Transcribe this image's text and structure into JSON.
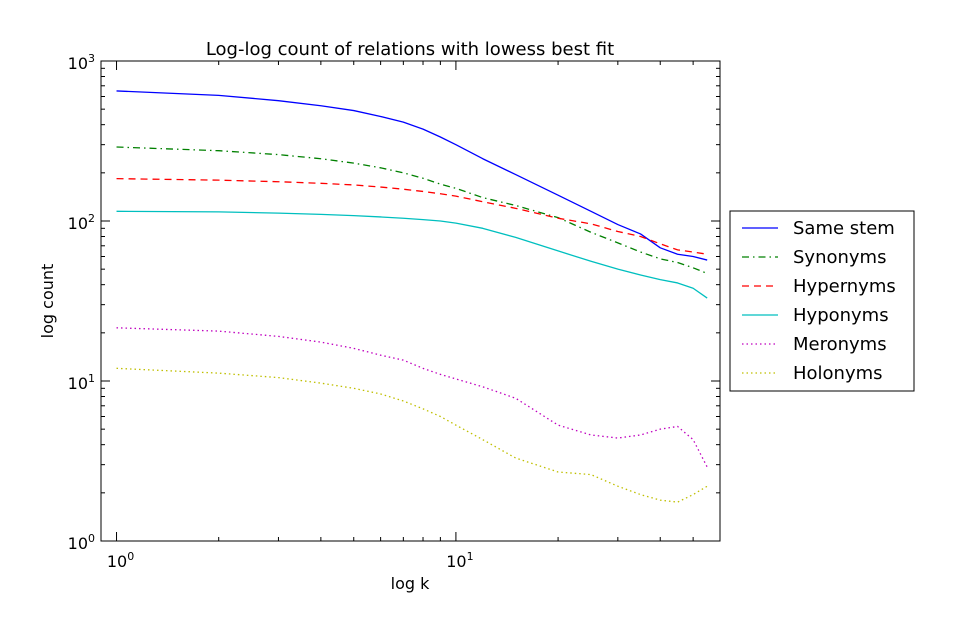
{
  "chart_data": {
    "type": "line",
    "title": "Log-log count of relations with lowess best fit",
    "xlabel": "log k",
    "ylabel": "log count",
    "x_scale": "log",
    "y_scale": "log",
    "xlim": [
      0.9,
      60
    ],
    "ylim": [
      1,
      1000
    ],
    "x_ticks": [
      {
        "value": 1,
        "base": "10",
        "exp": "0"
      },
      {
        "value": 10,
        "base": "10",
        "exp": "1"
      }
    ],
    "y_ticks": [
      {
        "value": 1,
        "base": "10",
        "exp": "0"
      },
      {
        "value": 10,
        "base": "10",
        "exp": "1"
      },
      {
        "value": 100,
        "base": "10",
        "exp": "2"
      },
      {
        "value": 1000,
        "base": "10",
        "exp": "3"
      }
    ],
    "grid": false,
    "legend_position": "right, outside plot",
    "x": [
      1,
      2,
      3,
      4,
      5,
      6,
      7,
      8,
      9,
      10,
      12,
      15,
      20,
      25,
      30,
      35,
      40,
      45,
      50,
      55
    ],
    "series": [
      {
        "name": "Same stem",
        "color": "#0000ff",
        "dash": "solid",
        "values": [
          650,
          610,
          565,
          525,
          490,
          450,
          415,
          375,
          335,
          300,
          245,
          195,
          145,
          115,
          95,
          83,
          68,
          62,
          60,
          57
        ]
      },
      {
        "name": "Synonyms",
        "color": "#008000",
        "dash": "dashdot",
        "values": [
          290,
          275,
          260,
          245,
          230,
          215,
          200,
          185,
          170,
          160,
          140,
          125,
          105,
          85,
          73,
          64,
          58,
          55,
          51,
          47
        ]
      },
      {
        "name": "Hypernyms",
        "color": "#ff0000",
        "dash": "dashed",
        "values": [
          184,
          180,
          176,
          172,
          168,
          163,
          158,
          153,
          148,
          143,
          132,
          120,
          104,
          96,
          86,
          80,
          72,
          66,
          64,
          62
        ]
      },
      {
        "name": "Hyponyms",
        "color": "#00bfbf",
        "dash": "solid",
        "values": [
          115,
          114,
          112,
          110,
          108,
          106,
          104,
          102,
          100,
          97,
          90,
          79,
          65,
          56,
          50,
          46,
          43,
          41,
          38,
          33
        ]
      },
      {
        "name": "Meronyms",
        "color": "#bf00bf",
        "dash": "dotted",
        "values": [
          21.5,
          20.5,
          19,
          17.5,
          16,
          14.5,
          13.5,
          12,
          11,
          10.3,
          9.2,
          7.8,
          5.3,
          4.6,
          4.4,
          4.6,
          5.0,
          5.2,
          4.3,
          2.9
        ]
      },
      {
        "name": "Holonyms",
        "color": "#bfbf00",
        "dash": "dotted",
        "values": [
          12,
          11.2,
          10.5,
          9.7,
          9,
          8.3,
          7.5,
          6.7,
          6.0,
          5.3,
          4.3,
          3.3,
          2.7,
          2.6,
          2.2,
          1.95,
          1.8,
          1.75,
          1.95,
          2.2
        ]
      }
    ]
  }
}
